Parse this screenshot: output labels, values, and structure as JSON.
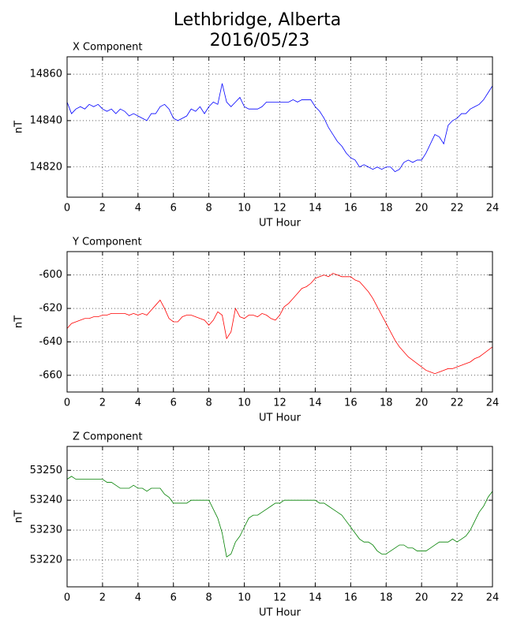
{
  "title": "Lethbridge, Alberta",
  "subtitle": "2016/05/23",
  "chart_data": [
    {
      "type": "line",
      "title": "X Component",
      "xlabel": "UT Hour",
      "ylabel": "nT",
      "x": [
        0,
        0.25,
        0.5,
        0.75,
        1,
        1.25,
        1.5,
        1.75,
        2,
        2.25,
        2.5,
        2.75,
        3,
        3.25,
        3.5,
        3.75,
        4,
        4.25,
        4.5,
        4.75,
        5,
        5.25,
        5.5,
        5.75,
        6,
        6.25,
        6.5,
        6.75,
        7,
        7.25,
        7.5,
        7.75,
        8,
        8.25,
        8.5,
        8.75,
        9,
        9.25,
        9.5,
        9.75,
        10,
        10.25,
        10.5,
        10.75,
        11,
        11.25,
        11.5,
        11.75,
        12,
        12.25,
        12.5,
        12.75,
        13,
        13.25,
        13.5,
        13.75,
        14,
        14.25,
        14.5,
        14.75,
        15,
        15.25,
        15.5,
        15.75,
        16,
        16.25,
        16.5,
        16.75,
        17,
        17.25,
        17.5,
        17.75,
        18,
        18.25,
        18.5,
        18.75,
        19,
        19.25,
        19.5,
        19.75,
        20,
        20.25,
        20.5,
        20.75,
        21,
        21.25,
        21.5,
        21.75,
        22,
        22.25,
        22.5,
        22.75,
        23,
        23.25,
        23.5,
        23.75,
        24
      ],
      "series": [
        {
          "name": "X",
          "color": "#0000ff",
          "values": [
            14848,
            14843,
            14845,
            14846,
            14845,
            14847,
            14846,
            14847,
            14845,
            14844,
            14845,
            14843,
            14845,
            14844,
            14842,
            14843,
            14842,
            14841,
            14840,
            14843,
            14843,
            14846,
            14847,
            14845,
            14841,
            14840,
            14841,
            14842,
            14845,
            14844,
            14846,
            14843,
            14846,
            14848,
            14847,
            14856,
            14848,
            14846,
            14848,
            14850,
            14846,
            14845,
            14845,
            14845,
            14846,
            14848,
            14848,
            14848,
            14848,
            14848,
            14848,
            14849,
            14848,
            14849,
            14849,
            14849,
            14846,
            14844,
            14841,
            14837,
            14834,
            14831,
            14829,
            14826,
            14824,
            14823,
            14820,
            14821,
            14820,
            14819,
            14820,
            14819,
            14820,
            14820,
            14818,
            14819,
            14822,
            14823,
            14822,
            14823,
            14823,
            14826,
            14830,
            14834,
            14833,
            14830,
            14838,
            14840,
            14841,
            14843,
            14843,
            14845,
            14846,
            14847,
            14849,
            14852,
            14855
          ]
        }
      ],
      "xlim": [
        0,
        24
      ],
      "xticks": [
        0,
        2,
        4,
        6,
        8,
        10,
        12,
        14,
        16,
        18,
        20,
        22,
        24
      ],
      "ylim": [
        14807,
        14867.5
      ],
      "yticks": [
        14820,
        14840,
        14860
      ],
      "grid": true
    },
    {
      "type": "line",
      "title": "Y Component",
      "xlabel": "UT Hour",
      "ylabel": "nT",
      "x": [
        0,
        0.25,
        0.5,
        0.75,
        1,
        1.25,
        1.5,
        1.75,
        2,
        2.25,
        2.5,
        2.75,
        3,
        3.25,
        3.5,
        3.75,
        4,
        4.25,
        4.5,
        4.75,
        5,
        5.25,
        5.5,
        5.75,
        6,
        6.25,
        6.5,
        6.75,
        7,
        7.25,
        7.5,
        7.75,
        8,
        8.25,
        8.5,
        8.75,
        9,
        9.25,
        9.5,
        9.75,
        10,
        10.25,
        10.5,
        10.75,
        11,
        11.25,
        11.5,
        11.75,
        12,
        12.25,
        12.5,
        12.75,
        13,
        13.25,
        13.5,
        13.75,
        14,
        14.25,
        14.5,
        14.75,
        15,
        15.25,
        15.5,
        15.75,
        16,
        16.25,
        16.5,
        16.75,
        17,
        17.25,
        17.5,
        17.75,
        18,
        18.25,
        18.5,
        18.75,
        19,
        19.25,
        19.5,
        19.75,
        20,
        20.25,
        20.5,
        20.75,
        21,
        21.25,
        21.5,
        21.75,
        22,
        22.25,
        22.5,
        22.75,
        23,
        23.25,
        23.5,
        23.75,
        24
      ],
      "series": [
        {
          "name": "Y",
          "color": "#ff0000",
          "values": [
            -632,
            -629,
            -628,
            -627,
            -626,
            -626,
            -625,
            -625,
            -624,
            -624,
            -623,
            -623,
            -623,
            -623,
            -624,
            -623,
            -624,
            -623,
            -624,
            -621,
            -618,
            -615,
            -620,
            -626,
            -628,
            -628,
            -625,
            -624,
            -624,
            -625,
            -626,
            -627,
            -630,
            -627,
            -622,
            -624,
            -638,
            -634,
            -620,
            -625,
            -626,
            -624,
            -624,
            -625,
            -623,
            -624,
            -626,
            -627,
            -624,
            -619,
            -617,
            -614,
            -611,
            -608,
            -607,
            -605,
            -602,
            -601,
            -600,
            -601,
            -599,
            -600,
            -601,
            -601,
            -601,
            -603,
            -604,
            -607,
            -610,
            -614,
            -619,
            -624,
            -629,
            -634,
            -639,
            -643,
            -646,
            -649,
            -651,
            -653,
            -655,
            -657,
            -658,
            -659,
            -658,
            -657,
            -656,
            -656,
            -655,
            -654,
            -653,
            -652,
            -650,
            -649,
            -647,
            -645,
            -643
          ]
        }
      ],
      "xlim": [
        0,
        24
      ],
      "xticks": [
        0,
        2,
        4,
        6,
        8,
        10,
        12,
        14,
        16,
        18,
        20,
        22,
        24
      ],
      "ylim": [
        -670,
        -586
      ],
      "yticks": [
        -660,
        -640,
        -620,
        -600
      ],
      "grid": true
    },
    {
      "type": "line",
      "title": "Z Component",
      "xlabel": "UT Hour",
      "ylabel": "nT",
      "x": [
        0,
        0.25,
        0.5,
        0.75,
        1,
        1.25,
        1.5,
        1.75,
        2,
        2.25,
        2.5,
        2.75,
        3,
        3.25,
        3.5,
        3.75,
        4,
        4.25,
        4.5,
        4.75,
        5,
        5.25,
        5.5,
        5.75,
        6,
        6.25,
        6.5,
        6.75,
        7,
        7.25,
        7.5,
        7.75,
        8,
        8.25,
        8.5,
        8.75,
        9,
        9.25,
        9.5,
        9.75,
        10,
        10.25,
        10.5,
        10.75,
        11,
        11.25,
        11.5,
        11.75,
        12,
        12.25,
        12.5,
        12.75,
        13,
        13.25,
        13.5,
        13.75,
        14,
        14.25,
        14.5,
        14.75,
        15,
        15.25,
        15.5,
        15.75,
        16,
        16.25,
        16.5,
        16.75,
        17,
        17.25,
        17.5,
        17.75,
        18,
        18.25,
        18.5,
        18.75,
        19,
        19.25,
        19.5,
        19.75,
        20,
        20.25,
        20.5,
        20.75,
        21,
        21.25,
        21.5,
        21.75,
        22,
        22.25,
        22.5,
        22.75,
        23,
        23.25,
        23.5,
        23.75,
        24
      ],
      "series": [
        {
          "name": "Z",
          "color": "#008000",
          "values": [
            53247,
            53248,
            53247,
            53247,
            53247,
            53247,
            53247,
            53247,
            53247,
            53246,
            53246,
            53245,
            53244,
            53244,
            53244,
            53245,
            53244,
            53244,
            53243,
            53244,
            53244,
            53244,
            53242,
            53241,
            53239,
            53239,
            53239,
            53239,
            53240,
            53240,
            53240,
            53240,
            53240,
            53237,
            53234,
            53229,
            53221,
            53222,
            53226,
            53228,
            53231,
            53234,
            53235,
            53235,
            53236,
            53237,
            53238,
            53239,
            53239,
            53240,
            53240,
            53240,
            53240,
            53240,
            53240,
            53240,
            53240,
            53239,
            53239,
            53238,
            53237,
            53236,
            53235,
            53233,
            53231,
            53229,
            53227,
            53226,
            53226,
            53225,
            53223,
            53222,
            53222,
            53223,
            53224,
            53225,
            53225,
            53224,
            53224,
            53223,
            53223,
            53223,
            53224,
            53225,
            53226,
            53226,
            53226,
            53227,
            53226,
            53227,
            53228,
            53230,
            53233,
            53236,
            53238,
            53241,
            53243
          ]
        }
      ],
      "xlim": [
        0,
        24
      ],
      "xticks": [
        0,
        2,
        4,
        6,
        8,
        10,
        12,
        14,
        16,
        18,
        20,
        22,
        24
      ],
      "ylim": [
        53211,
        53258
      ],
      "yticks": [
        53220,
        53230,
        53240,
        53250
      ],
      "grid": true
    }
  ]
}
